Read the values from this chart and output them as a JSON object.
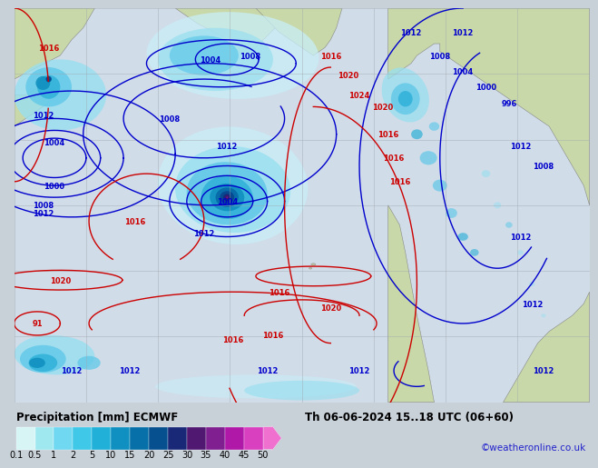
{
  "title_left": "Precipitation [mm] ECMWF",
  "title_right": "Th 06-06-2024 15..18 UTC (06+60)",
  "watermark": "©weatheronline.co.uk",
  "colorbar_levels": [
    "0.1",
    "0.5",
    "1",
    "2",
    "5",
    "10",
    "15",
    "20",
    "25",
    "30",
    "35",
    "40",
    "45",
    "50"
  ],
  "colorbar_colors": [
    "#d8f5f5",
    "#a0e8f0",
    "#70d8f0",
    "#40c8e8",
    "#20b0d8",
    "#1090c0",
    "#0870a8",
    "#065090",
    "#1a2878",
    "#501870",
    "#802090",
    "#b018a8",
    "#d840c0",
    "#f070d0"
  ],
  "bg_color": "#c8d0d8",
  "map_bg": "#d8dfe8",
  "ocean_color": "#c8d8e8",
  "land_color": "#c8d8a8",
  "grid_color": "#a0a8b0",
  "blue_contour": "#0000cc",
  "red_contour": "#cc0000",
  "title_fontsize": 8.5,
  "watermark_color": "#2222cc",
  "watermark_fontsize": 7.5,
  "contour_fontsize": 6,
  "colorbar_label_fontsize": 7
}
